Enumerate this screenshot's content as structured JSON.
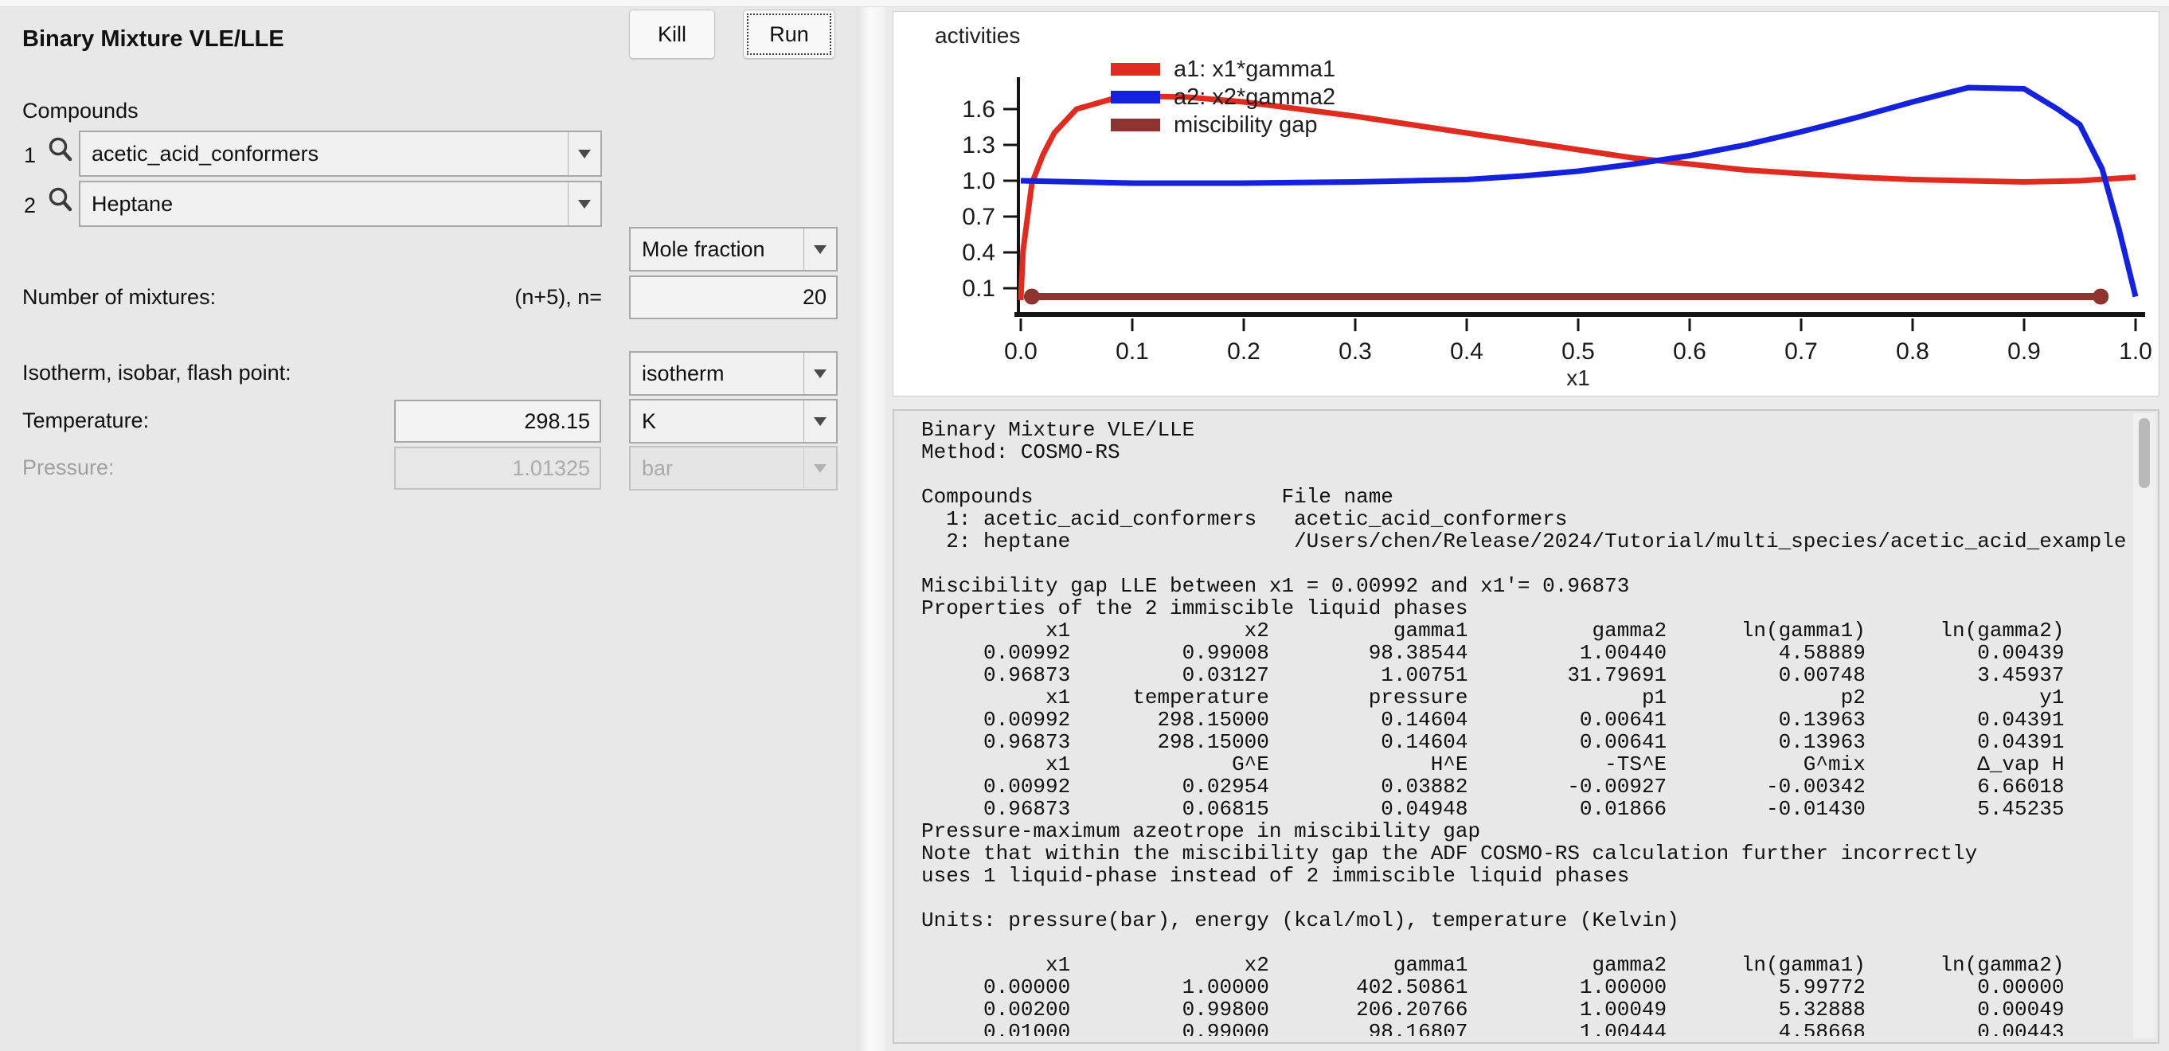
{
  "left_panel": {
    "title": "Binary Mixture VLE/LLE",
    "buttons": {
      "kill": "Kill",
      "run": "Run"
    },
    "compounds": {
      "label": "Compounds",
      "rows": [
        {
          "index": "1",
          "value": "acetic_acid_conformers"
        },
        {
          "index": "2",
          "value": "Heptane"
        }
      ]
    },
    "composition_unit": "Mole fraction",
    "mixtures": {
      "label": "Number of mixtures:",
      "formula": "(n+5), n=",
      "value": "20"
    },
    "mode": {
      "label": "Isotherm, isobar, flash point:",
      "value": "isotherm"
    },
    "temperature": {
      "label": "Temperature:",
      "value": "298.15",
      "unit": "K"
    },
    "pressure": {
      "label": "Pressure:",
      "value": "1.01325",
      "unit": "bar"
    }
  },
  "chart_data": {
    "type": "line",
    "title": "activities",
    "xlabel": "x1",
    "xlim": [
      0.0,
      1.0
    ],
    "ylim": [
      -0.12,
      1.9
    ],
    "grid": false,
    "legend_position": "upper-left-inside",
    "xticks": [
      "0.0",
      "0.1",
      "0.2",
      "0.3",
      "0.4",
      "0.5",
      "0.6",
      "0.7",
      "0.8",
      "0.9",
      "1.0"
    ],
    "yticks": [
      "0.1",
      "0.4",
      "0.7",
      "1.0",
      "1.3",
      "1.6"
    ],
    "series": [
      {
        "name": "a1: x1*gamma1",
        "color": "#e02b20",
        "width": 7,
        "markers": false,
        "points": [
          [
            0,
            0
          ],
          [
            0.002,
            0.41
          ],
          [
            0.01,
            0.98
          ],
          [
            0.02,
            1.22
          ],
          [
            0.03,
            1.4
          ],
          [
            0.05,
            1.6
          ],
          [
            0.08,
            1.68
          ],
          [
            0.1,
            1.71
          ],
          [
            0.15,
            1.7
          ],
          [
            0.2,
            1.66
          ],
          [
            0.25,
            1.6
          ],
          [
            0.3,
            1.54
          ],
          [
            0.35,
            1.47
          ],
          [
            0.4,
            1.4
          ],
          [
            0.45,
            1.33
          ],
          [
            0.5,
            1.26
          ],
          [
            0.55,
            1.19
          ],
          [
            0.6,
            1.14
          ],
          [
            0.65,
            1.09
          ],
          [
            0.7,
            1.06
          ],
          [
            0.75,
            1.03
          ],
          [
            0.8,
            1.01
          ],
          [
            0.85,
            1.0
          ],
          [
            0.9,
            0.99
          ],
          [
            0.95,
            1.0
          ],
          [
            1.0,
            1.03
          ]
        ]
      },
      {
        "name": "a2: x2*gamma2",
        "color": "#1421dd",
        "width": 7,
        "markers": false,
        "points": [
          [
            0,
            1.0
          ],
          [
            0.05,
            0.99
          ],
          [
            0.1,
            0.98
          ],
          [
            0.2,
            0.98
          ],
          [
            0.3,
            0.99
          ],
          [
            0.4,
            1.01
          ],
          [
            0.45,
            1.04
          ],
          [
            0.5,
            1.08
          ],
          [
            0.55,
            1.14
          ],
          [
            0.6,
            1.21
          ],
          [
            0.65,
            1.3
          ],
          [
            0.7,
            1.41
          ],
          [
            0.75,
            1.53
          ],
          [
            0.8,
            1.66
          ],
          [
            0.85,
            1.78
          ],
          [
            0.9,
            1.77
          ],
          [
            0.93,
            1.6
          ],
          [
            0.95,
            1.47
          ],
          [
            0.97,
            1.1
          ],
          [
            0.985,
            0.6
          ],
          [
            1.0,
            0.03
          ]
        ]
      },
      {
        "name": "miscibility gap",
        "color": "#8f3331",
        "width": 9,
        "markers": true,
        "points": [
          [
            0.00992,
            0.03
          ],
          [
            0.96873,
            0.03
          ]
        ]
      }
    ],
    "miscibility_gap": {
      "x1": 0.00992,
      "x1_prime": 0.96873
    }
  },
  "output": {
    "lines": [
      "Binary Mixture VLE/LLE",
      "Method: COSMO-RS",
      "",
      "Compounds                    File name",
      "  1: acetic_acid_conformers   acetic_acid_conformers",
      "  2: heptane                  /Users/chen/Release/2024/Tutorial/multi_species/acetic_acid_example",
      "",
      "Miscibility gap LLE between x1 = 0.00992 and x1'= 0.96873",
      "Properties of the 2 immiscible liquid phases",
      "          x1              x2          gamma1          gamma2      ln(gamma1)      ln(gamma2)",
      "     0.00992         0.99008        98.38544         1.00440         4.58889         0.00439",
      "     0.96873         0.03127         1.00751        31.79691         0.00748         3.45937",
      "          x1     temperature        pressure              p1              p2              y1",
      "     0.00992       298.15000         0.14604         0.00641         0.13963         0.04391",
      "     0.96873       298.15000         0.14604         0.00641         0.13963         0.04391",
      "          x1             G^E             H^E           -TS^E           G^mix         Δ_vap H",
      "     0.00992         0.02954         0.03882        -0.00927        -0.00342         6.66018",
      "     0.96873         0.06815         0.04948         0.01866        -0.01430         5.45235",
      "Pressure-maximum azeotrope in miscibility gap",
      "Note that within the miscibility gap the ADF COSMO-RS calculation further incorrectly",
      "uses 1 liquid-phase instead of 2 immiscible liquid phases",
      "",
      "Units: pressure(bar), energy (kcal/mol), temperature (Kelvin)",
      "",
      "          x1              x2          gamma1          gamma2      ln(gamma1)      ln(gamma2)",
      "     0.00000         1.00000       402.50861         1.00000         5.99772         0.00000",
      "     0.00200         0.99800       206.20766         1.00049         5.32888         0.00049",
      "     0.01000         0.99000        98.16807         1.00444         4.58668         0.00443"
    ]
  }
}
